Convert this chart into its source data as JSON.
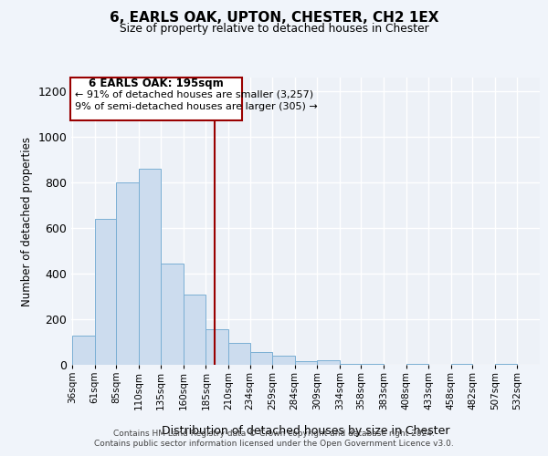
{
  "title": "6, EARLS OAK, UPTON, CHESTER, CH2 1EX",
  "subtitle": "Size of property relative to detached houses in Chester",
  "xlabel": "Distribution of detached houses by size in Chester",
  "ylabel": "Number of detached properties",
  "bar_color": "#ccdcee",
  "bar_edge_color": "#7aafd4",
  "bin_labels": [
    "36sqm",
    "61sqm",
    "85sqm",
    "110sqm",
    "135sqm",
    "160sqm",
    "185sqm",
    "210sqm",
    "234sqm",
    "259sqm",
    "284sqm",
    "309sqm",
    "334sqm",
    "358sqm",
    "383sqm",
    "408sqm",
    "433sqm",
    "458sqm",
    "482sqm",
    "507sqm",
    "532sqm"
  ],
  "bin_edges": [
    36,
    61,
    85,
    110,
    135,
    160,
    185,
    210,
    234,
    259,
    284,
    309,
    334,
    358,
    383,
    408,
    433,
    458,
    482,
    507,
    532
  ],
  "bar_heights": [
    130,
    640,
    800,
    860,
    445,
    310,
    155,
    95,
    55,
    40,
    15,
    20,
    5,
    5,
    0,
    5,
    0,
    5,
    0,
    5
  ],
  "vline_x": 195,
  "vline_color": "#990000",
  "annotation_title": "6 EARLS OAK: 195sqm",
  "annotation_line1": "← 91% of detached houses are smaller (3,257)",
  "annotation_line2": "9% of semi-detached houses are larger (305) →",
  "ylim": [
    0,
    1260
  ],
  "yticks": [
    0,
    200,
    400,
    600,
    800,
    1000,
    1200
  ],
  "bg_color": "#edf1f7",
  "fig_bg_color": "#f0f4fa",
  "footer1": "Contains HM Land Registry data © Crown copyright and database right 2024.",
  "footer2": "Contains public sector information licensed under the Open Government Licence v3.0."
}
